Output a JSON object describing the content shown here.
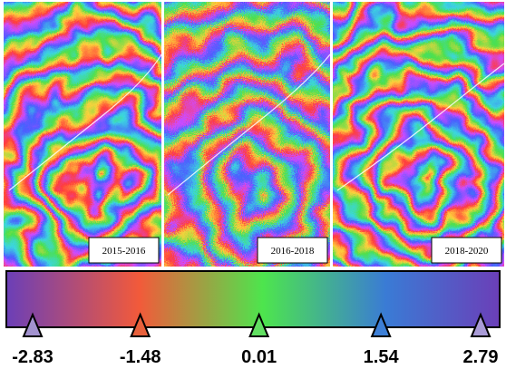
{
  "panels": [
    {
      "label": "2015-2016"
    },
    {
      "label": "2016-2018"
    },
    {
      "label": "2018-2020"
    }
  ],
  "colorbar": {
    "stops": [
      {
        "value": -2.83,
        "color": "#a292cf"
      },
      {
        "value": -1.48,
        "color": "#e8613c"
      },
      {
        "value": 0.01,
        "color": "#62e062"
      },
      {
        "value": 1.54,
        "color": "#3d7fd6"
      },
      {
        "value": 2.79,
        "color": "#a99bd6"
      }
    ]
  }
}
